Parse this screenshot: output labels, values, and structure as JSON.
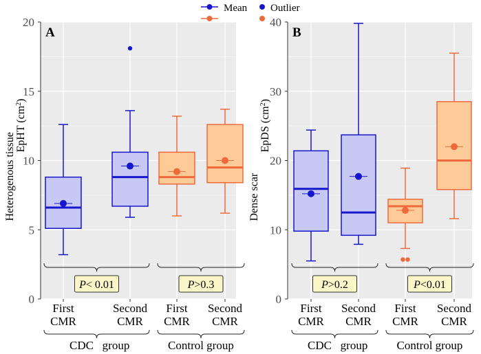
{
  "legend": {
    "mean_label": "Mean",
    "outlier_label": "Outlier"
  },
  "colors": {
    "cdc_stroke": "#1616cc",
    "cdc_fill": "#c8c8f4",
    "control_stroke": "#ee6a3c",
    "control_fill": "#fdcb98",
    "panel_bg": "#ebebeb",
    "annotation_fill": "#fbf6c8"
  },
  "chart_data": [
    {
      "type": "box",
      "panel_label": "A",
      "ylabel_line1": "Heterogenous tissue",
      "ylabel_line2": "EpHT (cm",
      "ylabel_sup": "2",
      "ylabel_close": ")",
      "ylim": [
        0,
        20
      ],
      "yticks": [
        0,
        5,
        10,
        15,
        20
      ],
      "groups": [
        {
          "name": "CDC group",
          "word1": "CDC",
          "word2": "group",
          "annotation_prefix": "P",
          "annotation_rest": "< 0.01"
        },
        {
          "name": "Control group",
          "word1": "Control",
          "word2": "group",
          "annotation_prefix": "P",
          "annotation_rest": ">0.3"
        }
      ],
      "boxes": [
        {
          "label_line1": "First",
          "label_line2": "CMR",
          "group": 0,
          "whisker_low": 3.2,
          "q1": 5.1,
          "median": 6.6,
          "q3": 8.8,
          "whisker_high": 12.6,
          "mean": 6.9,
          "outliers": []
        },
        {
          "label_line1": "Second",
          "label_line2": "CMR",
          "group": 0,
          "whisker_low": 5.9,
          "q1": 6.7,
          "median": 8.8,
          "q3": 10.6,
          "whisker_high": 13.6,
          "mean": 9.6,
          "outliers": [
            18.1
          ]
        },
        {
          "label_line1": "First",
          "label_line2": "CMR",
          "group": 1,
          "whisker_low": 6.0,
          "q1": 8.3,
          "median": 8.8,
          "q3": 10.6,
          "whisker_high": 13.2,
          "mean": 9.2,
          "outliers": []
        },
        {
          "label_line1": "Second",
          "label_line2": "CMR",
          "group": 1,
          "whisker_low": 6.2,
          "q1": 8.4,
          "median": 9.5,
          "q3": 12.6,
          "whisker_high": 13.7,
          "mean": 10.0,
          "outliers": []
        }
      ]
    },
    {
      "type": "box",
      "panel_label": "B",
      "ylabel_line1": "Dense scar",
      "ylabel_line2": "EpDS (cm",
      "ylabel_sup": "2",
      "ylabel_close": ")",
      "ylim": [
        0,
        40
      ],
      "yticks": [
        0,
        10,
        20,
        30,
        40
      ],
      "groups": [
        {
          "name": "CDC group",
          "word1": "CDC",
          "word2": "group",
          "annotation_prefix": "P",
          "annotation_rest": ">0.2"
        },
        {
          "name": "Control group",
          "word1": "Control",
          "word2": "group",
          "annotation_prefix": "P",
          "annotation_rest": "<0.01"
        }
      ],
      "boxes": [
        {
          "label_line1": "First",
          "label_line2": "CMR",
          "group": 0,
          "whisker_low": 5.5,
          "q1": 9.8,
          "median": 15.9,
          "q3": 21.4,
          "whisker_high": 24.4,
          "mean": 15.2,
          "outliers": []
        },
        {
          "label_line1": "Second",
          "label_line2": "CMR",
          "group": 0,
          "whisker_low": 7.9,
          "q1": 9.2,
          "median": 12.5,
          "q3": 23.7,
          "whisker_high": 39.8,
          "mean": 17.7,
          "outliers": []
        },
        {
          "label_line1": "First",
          "label_line2": "CMR",
          "group": 1,
          "whisker_low": 7.3,
          "q1": 11.0,
          "median": 13.4,
          "q3": 14.4,
          "whisker_high": 18.9,
          "mean": 12.8,
          "outliers": [
            5.7,
            5.7
          ]
        },
        {
          "label_line1": "Second",
          "label_line2": "CMR",
          "group": 1,
          "whisker_low": 11.6,
          "q1": 15.8,
          "median": 20.0,
          "q3": 28.5,
          "whisker_high": 35.5,
          "mean": 22.0,
          "outliers": []
        }
      ]
    }
  ]
}
